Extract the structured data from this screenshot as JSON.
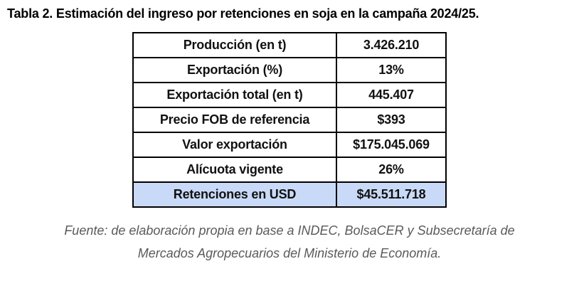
{
  "title": "Tabla 2. Estimación del ingreso por retenciones en soja en la campaña 2024/25.",
  "table": {
    "highlight_color": "#c9daf8",
    "border_color": "#000000",
    "rows": [
      {
        "label": "Producción (en t)",
        "value": "3.426.210",
        "highlight": false
      },
      {
        "label": "Exportación (%)",
        "value": "13%",
        "highlight": false
      },
      {
        "label": "Exportación total (en t)",
        "value": "445.407",
        "highlight": false
      },
      {
        "label": "Precio FOB de referencia",
        "value": "$393",
        "highlight": false
      },
      {
        "label": "Valor exportación",
        "value": "$175.045.069",
        "highlight": false
      },
      {
        "label": "Alícuota vigente",
        "value": "26%",
        "highlight": false
      },
      {
        "label": "Retenciones en USD",
        "value": "$45.511.718",
        "highlight": true
      }
    ]
  },
  "footer": {
    "line1": "Fuente: de elaboración propia en base a INDEC, BolsaCER y Subsecretaría de",
    "line2": "Mercados Agropecuarios del Ministerio de Economía.",
    "text_color": "#5a5a5a"
  }
}
